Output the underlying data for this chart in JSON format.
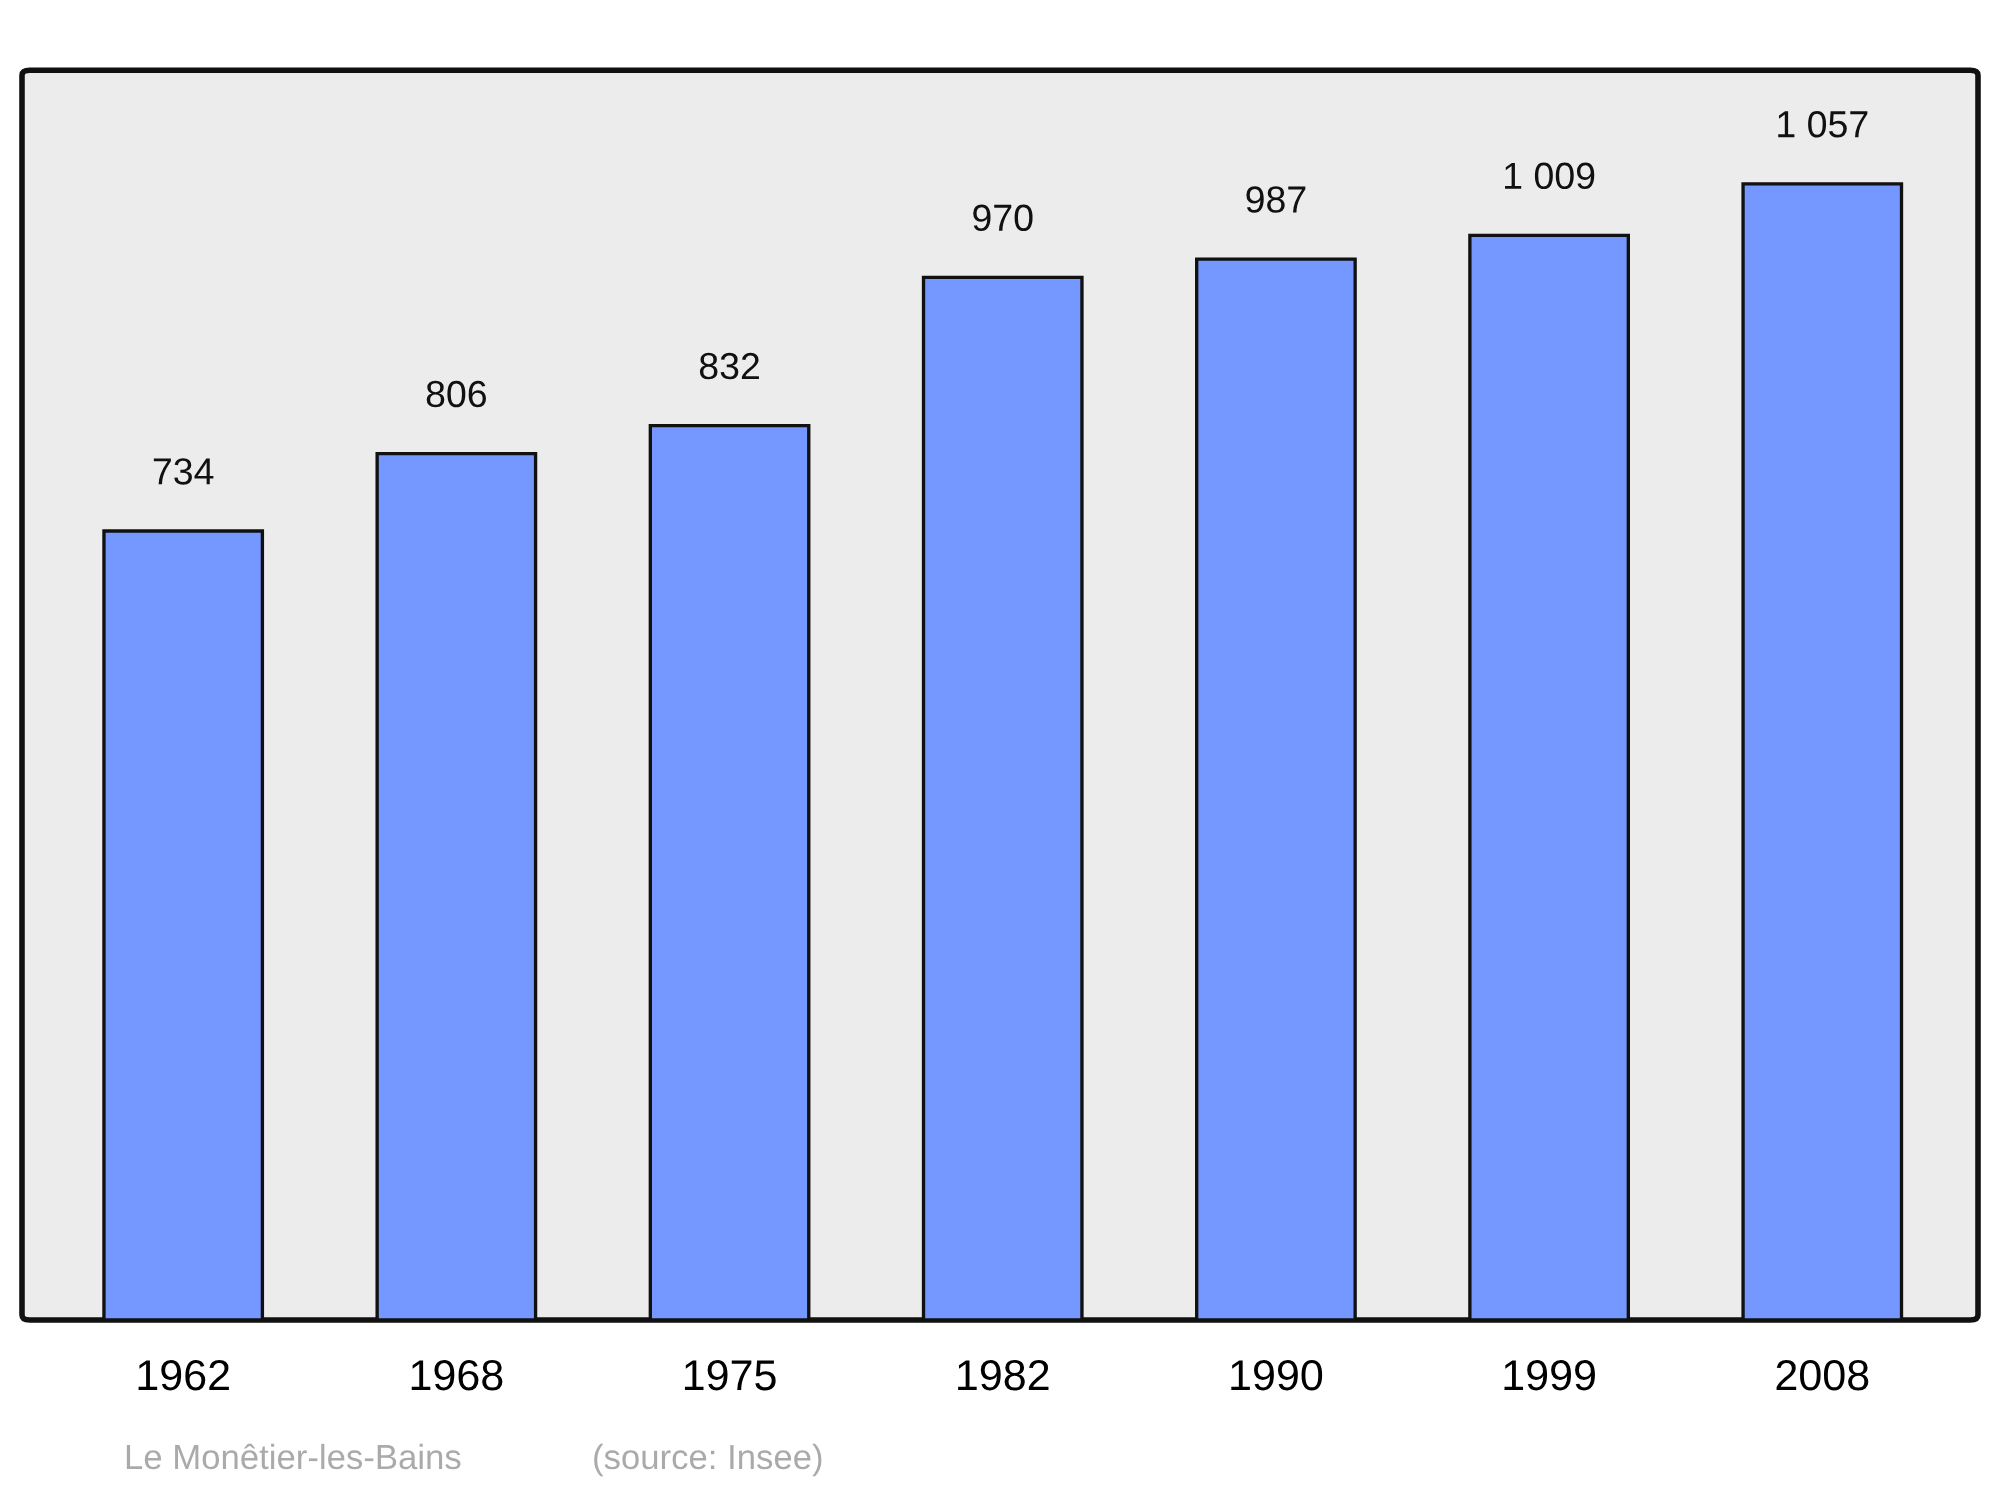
{
  "chart_data": {
    "type": "bar",
    "categories": [
      "1962",
      "1968",
      "1975",
      "1982",
      "1990",
      "1999",
      "2008"
    ],
    "values": [
      734,
      806,
      832,
      970,
      987,
      1009,
      1057
    ],
    "value_labels": [
      "734",
      "806",
      "832",
      "970",
      "987",
      "1 009",
      "1 057"
    ],
    "color": "#7498ff",
    "grid": false,
    "legend": false,
    "annotations": [
      "Le Monêtier-les-Bains",
      "(source: Insee)"
    ]
  }
}
